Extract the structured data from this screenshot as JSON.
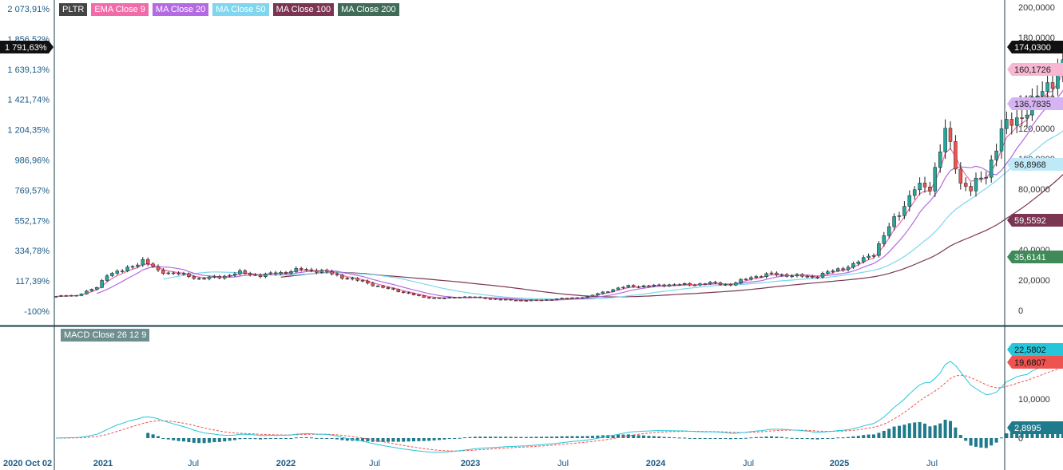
{
  "ticker": "PLTR",
  "legend": [
    {
      "label": "EMA Close 9",
      "color": "#f06ba8"
    },
    {
      "label": "MA Close 20",
      "color": "#b36ae2"
    },
    {
      "label": "MA Close 50",
      "color": "#7fd6ee"
    },
    {
      "label": "MA Close 100",
      "color": "#7b3552"
    },
    {
      "label": "MA Close 200",
      "color": "#3f6b58"
    }
  ],
  "macd_label": "MACD Close 26 12 9",
  "colors": {
    "up": "#26a69a",
    "down": "#ef5350",
    "wick": "#222222",
    "ema9": "#f06ba8",
    "ma20": "#b36ae2",
    "ma50": "#7fd6ee",
    "ma100": "#7b3552",
    "ma200": "#3f6b58",
    "macd": "#26c6da",
    "signal": "#ef5350",
    "hist": "#1f7a8c"
  },
  "chart_data": {
    "type": "candlestick",
    "title": "PLTR",
    "x_start_label": "2020 Oct 02",
    "x_ticks": [
      "2021",
      "Jul",
      "2022",
      "Jul",
      "2023",
      "Jul",
      "2024",
      "Jul",
      "2025",
      "Jul"
    ],
    "price_axis": {
      "ticks": [
        "200,0000",
        "180,0000",
        "160,0000",
        "140,0000",
        "120,0000",
        "100,0000",
        "80,0000",
        "60,0000",
        "40,0000",
        "20,0000",
        "0"
      ],
      "ylim": [
        0,
        200
      ]
    },
    "percent_axis": {
      "ticks": [
        "2 073,91%",
        "1 856,52%",
        "1 639,13%",
        "1 421,74%",
        "1 204,35%",
        "986,96%",
        "769,57%",
        "552,17%",
        "334,78%",
        "117,39%",
        "-100%"
      ]
    },
    "current_percent": "1 791,63%",
    "last_values": {
      "close": "174,0300",
      "ema9": "160,1726",
      "ma20": "136,7835",
      "ma50": "96,8968",
      "ma100": "59,5592",
      "ma200": "35,6141"
    },
    "macd": {
      "ticks": [
        "10,0000",
        "0"
      ],
      "last": {
        "macd": "22,5802",
        "signal": "19,6807",
        "histogram": "2,8995"
      }
    },
    "anchors": [
      {
        "t": 0,
        "v": 9.2
      },
      {
        "t": 4,
        "v": 10
      },
      {
        "t": 8,
        "v": 15
      },
      {
        "t": 10,
        "v": 24
      },
      {
        "t": 13,
        "v": 26
      },
      {
        "t": 17,
        "v": 33
      },
      {
        "t": 20,
        "v": 26
      },
      {
        "t": 24,
        "v": 24
      },
      {
        "t": 28,
        "v": 21
      },
      {
        "t": 32,
        "v": 22
      },
      {
        "t": 36,
        "v": 25
      },
      {
        "t": 40,
        "v": 23
      },
      {
        "t": 44,
        "v": 25
      },
      {
        "t": 48,
        "v": 27
      },
      {
        "t": 52,
        "v": 26
      },
      {
        "t": 56,
        "v": 22
      },
      {
        "t": 60,
        "v": 19
      },
      {
        "t": 64,
        "v": 15
      },
      {
        "t": 68,
        "v": 12
      },
      {
        "t": 72,
        "v": 8.5
      },
      {
        "t": 76,
        "v": 8
      },
      {
        "t": 80,
        "v": 9
      },
      {
        "t": 84,
        "v": 8
      },
      {
        "t": 88,
        "v": 7
      },
      {
        "t": 92,
        "v": 6.5
      },
      {
        "t": 96,
        "v": 7
      },
      {
        "t": 100,
        "v": 8
      },
      {
        "t": 104,
        "v": 9
      },
      {
        "t": 108,
        "v": 13
      },
      {
        "t": 112,
        "v": 16
      },
      {
        "t": 116,
        "v": 16
      },
      {
        "t": 120,
        "v": 17
      },
      {
        "t": 124,
        "v": 17
      },
      {
        "t": 128,
        "v": 18
      },
      {
        "t": 132,
        "v": 17
      },
      {
        "t": 136,
        "v": 22
      },
      {
        "t": 140,
        "v": 24
      },
      {
        "t": 144,
        "v": 23
      },
      {
        "t": 148,
        "v": 22
      },
      {
        "t": 152,
        "v": 26
      },
      {
        "t": 156,
        "v": 30
      },
      {
        "t": 160,
        "v": 38
      },
      {
        "t": 164,
        "v": 60
      },
      {
        "t": 168,
        "v": 80
      },
      {
        "t": 171,
        "v": 82
      },
      {
        "t": 174,
        "v": 118
      },
      {
        "t": 177,
        "v": 85
      },
      {
        "t": 179,
        "v": 80
      },
      {
        "t": 182,
        "v": 90
      },
      {
        "t": 185,
        "v": 118
      },
      {
        "t": 188,
        "v": 127
      },
      {
        "t": 191,
        "v": 135
      },
      {
        "t": 194,
        "v": 150
      },
      {
        "t": 197,
        "v": 160
      },
      {
        "t": 198,
        "v": 186
      },
      {
        "t": 199,
        "v": 174
      }
    ]
  }
}
